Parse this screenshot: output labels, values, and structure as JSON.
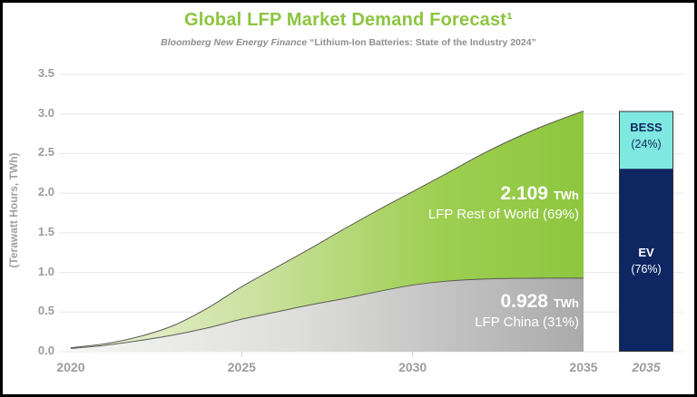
{
  "header": {
    "title": "Global LFP Market Demand Forecast¹",
    "source": "Bloomberg New Energy Finance",
    "quote": "“Lithium-Ion Batteries: State of the Industry 2024”"
  },
  "axes": {
    "ylabel": "(Terawatt Hours, TWh)",
    "ytick_labels": [
      "0.0",
      "0.5",
      "1.0",
      "1.5",
      "2.0",
      "2.5",
      "3.0",
      "3.5"
    ],
    "xtick_labels": [
      "2020",
      "2025",
      "2030",
      "2035"
    ],
    "bar_xlabel": "2035"
  },
  "annotations": {
    "row_value": "2.109",
    "row_unit": "TWh",
    "row_label": "LFP Rest of World (69%)",
    "china_value": "0.928",
    "china_unit": "TWh",
    "china_label": "LFP China (31%)"
  },
  "bar": {
    "bess_label": "BESS",
    "bess_pct": "(24%)",
    "ev_label": "EV",
    "ev_pct": "(76%)",
    "xlabel": "2035"
  },
  "colors": {
    "title_green": "#8bc53f",
    "area_green_end": "#8dc63f",
    "area_green_mid": "#cbe19f",
    "area_green_start": "#f0f4e1",
    "area_gray_end": "#aaaaaa",
    "area_gray_mid": "#dededd",
    "area_gray_start": "#f6f6f5",
    "edge_stroke": "#5a5a52",
    "gridline": "#e8e8e8",
    "axis_text": "#9c9c9c",
    "bess_cyan": "#7fe9e1",
    "ev_navy": "#0e2763",
    "bar_outline": "#333333"
  },
  "chart_data": {
    "type": "area",
    "title": "Global LFP Market Demand Forecast¹",
    "subtitle": "Bloomberg New Energy Finance “Lithium-Ion Batteries: State of the Industry 2024”",
    "ylabel": "(Terawatt Hours, TWh)",
    "ylim": [
      0,
      3.5
    ],
    "ytick_step": 0.5,
    "grid": "horizontal",
    "stacked": true,
    "x": [
      2020,
      2021,
      2022,
      2023,
      2024,
      2025,
      2026,
      2027,
      2028,
      2029,
      2030,
      2031,
      2032,
      2033,
      2034,
      2035
    ],
    "xticks": [
      2020,
      2025,
      2030,
      2035
    ],
    "series": [
      {
        "name": "LFP China",
        "share_2035": "31%",
        "value_2035_twh": 0.928,
        "values": [
          0.04,
          0.08,
          0.14,
          0.21,
          0.3,
          0.41,
          0.5,
          0.59,
          0.67,
          0.76,
          0.84,
          0.89,
          0.915,
          0.925,
          0.928,
          0.928
        ]
      },
      {
        "name": "LFP Rest of World",
        "share_2035": "69%",
        "value_2035_twh": 2.109,
        "values": [
          0.01,
          0.02,
          0.05,
          0.12,
          0.25,
          0.41,
          0.56,
          0.71,
          0.88,
          1.03,
          1.18,
          1.36,
          1.57,
          1.77,
          1.95,
          2.109
        ]
      }
    ],
    "total_2035_twh": 3.037,
    "bar_2035": {
      "xlabel": "2035",
      "total_twh": 3.037,
      "segments": [
        {
          "name": "BESS",
          "percent": 24
        },
        {
          "name": "EV",
          "percent": 76
        }
      ]
    }
  }
}
